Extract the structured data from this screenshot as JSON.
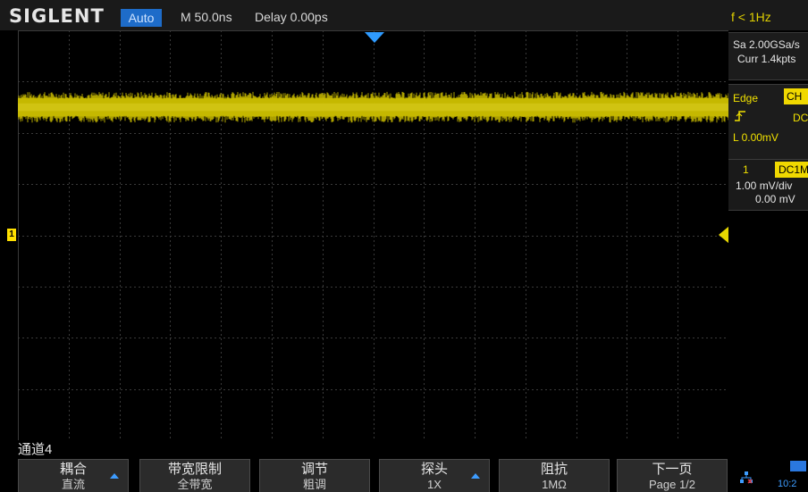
{
  "header": {
    "brand": "SIGLENT",
    "trigger_mode": "Auto",
    "timebase": "M 50.0ns",
    "delay": "Delay 0.00ps",
    "frequency": "f < 1Hz"
  },
  "acquisition": {
    "sample_rate": "Sa 2.00GSa/s",
    "memory": "Curr 1.4kpts"
  },
  "trigger": {
    "type": "Edge",
    "source": "CH",
    "coupling": "DC",
    "level": "L 0.00mV",
    "edge_icon": "rising-edge-icon"
  },
  "channel": {
    "number": "1",
    "coupling": "DC1M",
    "scale": "1.00 mV/div",
    "offset": "0.00 mV",
    "color": "#e6d600"
  },
  "menu": {
    "title": "通道4",
    "softkeys": [
      {
        "label": "耦合",
        "value": "直流",
        "arrow": true
      },
      {
        "label": "带宽限制",
        "value": "全带宽",
        "arrow": false
      },
      {
        "label": "调节",
        "value": "粗调",
        "arrow": false
      },
      {
        "label": "探头",
        "value": "1X",
        "arrow": true
      },
      {
        "label": "阻抗",
        "value": "1MΩ",
        "arrow": false
      },
      {
        "label": "下一页",
        "value": "Page 1/2",
        "arrow": false
      }
    ]
  },
  "status": {
    "clock": "10:2",
    "network_icon": "network-icon",
    "usb_icon": "usb-icon"
  },
  "waveform": {
    "noise_band_center_div": 1.5,
    "noise_band_halfwidth_div": 0.3
  }
}
